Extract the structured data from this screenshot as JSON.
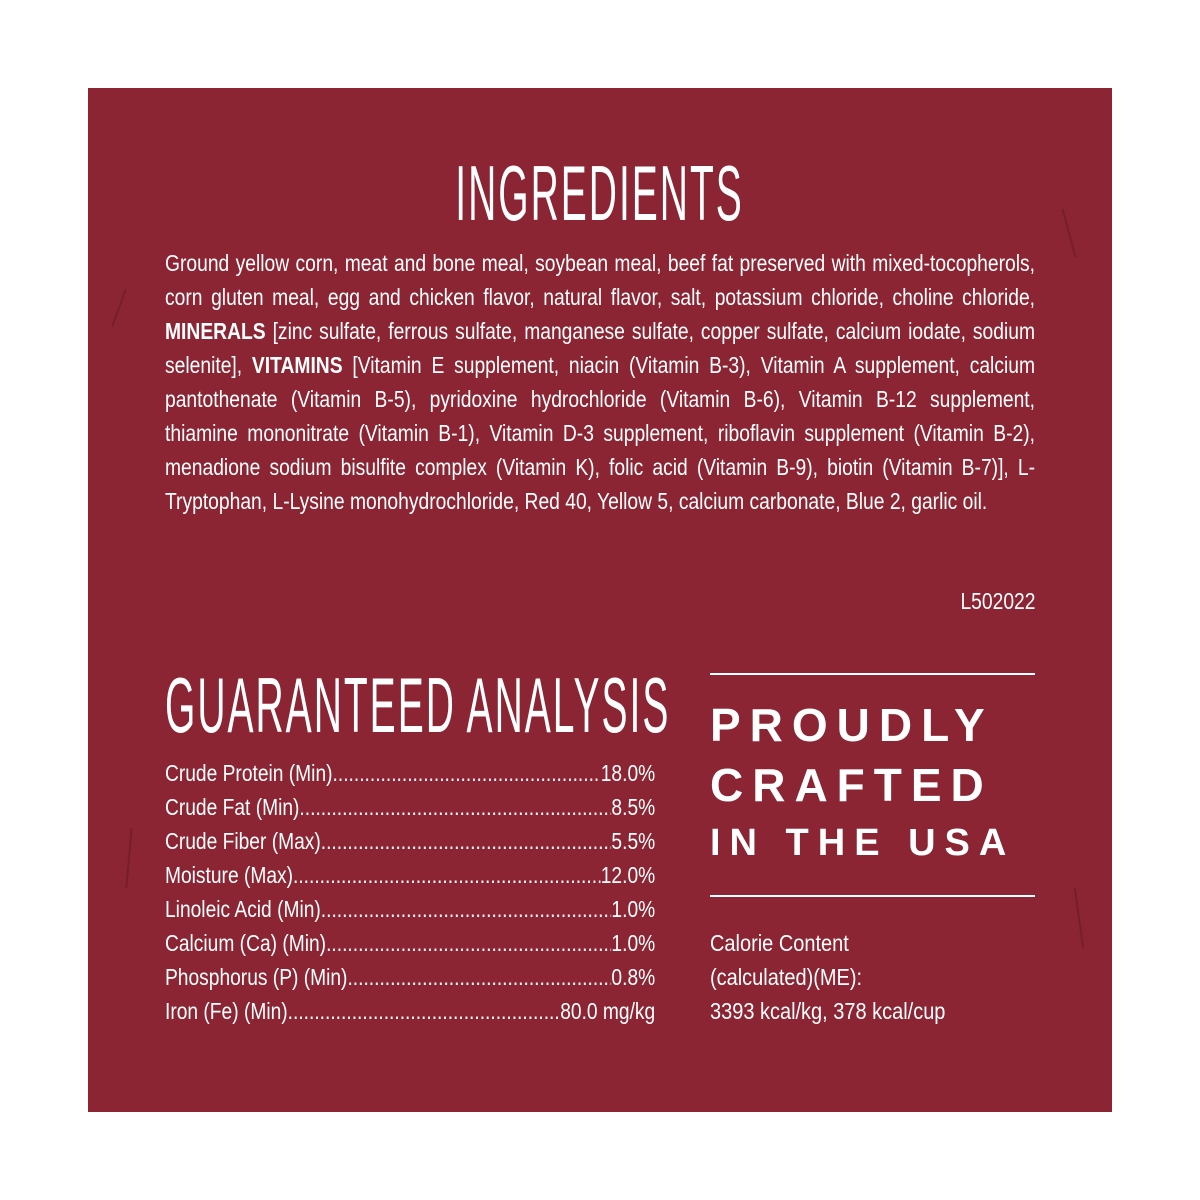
{
  "colors": {
    "panel": "#8b2533",
    "text": "#ffffff",
    "page": "#ffffff"
  },
  "ingredients": {
    "title": "INGREDIENTS",
    "text_1": "Ground yellow corn, meat and bone meal, soybean meal, beef fat preserved with mixed-tocopherols, corn gluten meal, egg and chicken flavor, natural flavor, salt, potassium chloride, choline chloride, ",
    "bold_1": "MINERALS",
    "text_2": " [zinc sulfate, ferrous sulfate, manganese sulfate, copper sulfate, calcium iodate, sodium selenite], ",
    "bold_2": "VITAMINS",
    "text_3": " [Vitamin E supplement, niacin (Vitamin B-3), Vitamin A supplement, calcium pantothenate (Vitamin B-5), pyridoxine hydrochloride (Vitamin B-6), Vitamin B-12 supplement, thiamine mononitrate (Vitamin B-1), Vitamin D-3 supplement, riboflavin supplement (Vitamin B-2), menadione sodium bisulfite complex (Vitamin K), folic acid (Vitamin B-9), biotin (Vitamin B-7)], L-Tryptophan, L-Lysine monohydrochloride, Red 40, Yellow 5, calcium carbonate, Blue 2, garlic oil.",
    "lot_code": "L502022"
  },
  "analysis": {
    "title": "GUARANTEED ANALYSIS",
    "rows": [
      {
        "label": "Crude Protein (Min)",
        "value": "18.0%"
      },
      {
        "label": "Crude Fat (Min)",
        "value": "8.5%"
      },
      {
        "label": "Crude Fiber (Max)",
        "value": "5.5%"
      },
      {
        "label": "Moisture (Max)",
        "value": "12.0%"
      },
      {
        "label": "Linoleic Acid (Min)",
        "value": "1.0%"
      },
      {
        "label": "Calcium (Ca) (Min)",
        "value": "1.0%"
      },
      {
        "label": "Phosphorus (P) (Min)",
        "value": "0.8%"
      },
      {
        "label": "Iron (Fe) (Min)",
        "value": "80.0 mg/kg"
      }
    ]
  },
  "badge": {
    "line1": "PROUDLY",
    "line2": "CRAFTED",
    "line3": "IN THE USA"
  },
  "calorie": {
    "line1": "Calorie Content",
    "line2": "(calculated)(ME):",
    "line3": "3393 kcal/kg, 378 kcal/cup"
  }
}
